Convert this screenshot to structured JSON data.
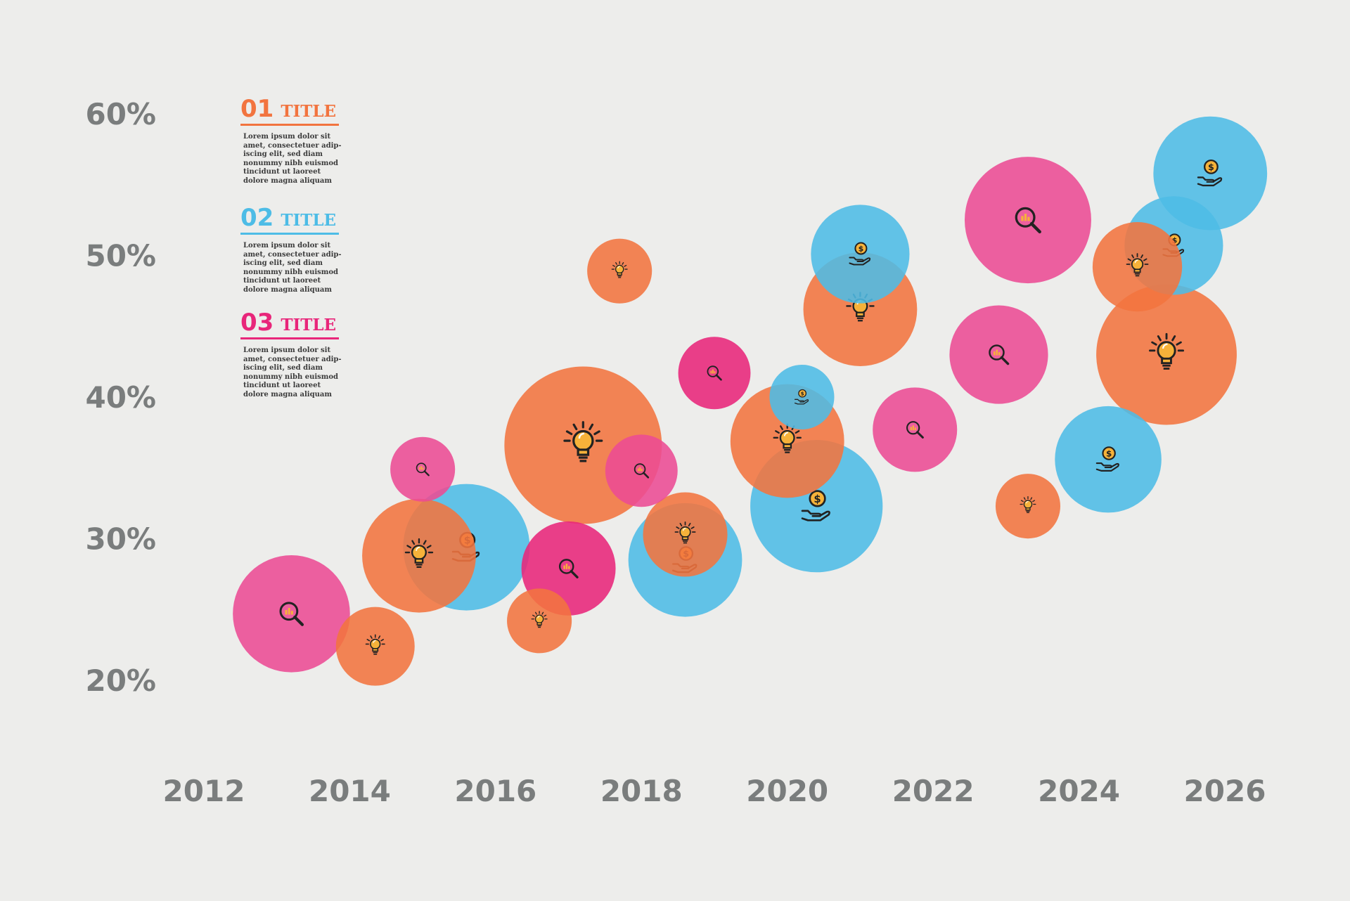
{
  "chart_data": {
    "type": "scatter",
    "subtype": "bubble",
    "title": "",
    "xlabel": "",
    "ylabel": "",
    "xlim": [
      2012,
      2026
    ],
    "ylim": [
      20,
      60
    ],
    "x_ticks": [
      "2012",
      "2014",
      "2016",
      "2018",
      "2020",
      "2022",
      "2024",
      "2026"
    ],
    "y_ticks": [
      "60%",
      "50%",
      "40%",
      "30%",
      "20%"
    ],
    "colors": {
      "orange": "#f2743f",
      "blue": "#4dbce6",
      "pink": "#ec4b94",
      "magenta": "#e8267a"
    },
    "series": [
      {
        "name": "01 TITLE",
        "color": "#f2743f",
        "icon": "lightbulb-icon",
        "points": [
          {
            "x": 2014.35,
            "y": 22.4,
            "size": 4
          },
          {
            "x": 2014.95,
            "y": 28.8,
            "size": 12
          },
          {
            "x": 2016.6,
            "y": 24.2,
            "size": 2
          },
          {
            "x": 2017.2,
            "y": 36.6,
            "size": 28
          },
          {
            "x": 2017.7,
            "y": 48.9,
            "size": 2
          },
          {
            "x": 2018.6,
            "y": 30.3,
            "size": 5
          },
          {
            "x": 2020.0,
            "y": 36.9,
            "size": 12
          },
          {
            "x": 2021.0,
            "y": 46.2,
            "size": 12
          },
          {
            "x": 2023.3,
            "y": 32.3,
            "size": 2
          },
          {
            "x": 2024.8,
            "y": 49.2,
            "size": 6
          },
          {
            "x": 2025.2,
            "y": 43.0,
            "size": 21
          }
        ]
      },
      {
        "name": "02 TITLE",
        "color": "#4dbce6",
        "icon": "coin-hand-icon",
        "points": [
          {
            "x": 2015.6,
            "y": 29.4,
            "size": 16
          },
          {
            "x": 2018.6,
            "y": 28.5,
            "size": 12
          },
          {
            "x": 2020.2,
            "y": 40.0,
            "size": 2
          },
          {
            "x": 2020.4,
            "y": 32.3,
            "size": 18
          },
          {
            "x": 2021.0,
            "y": 50.1,
            "size": 8
          },
          {
            "x": 2024.4,
            "y": 35.6,
            "size": 10
          },
          {
            "x": 2025.3,
            "y": 50.7,
            "size": 8
          },
          {
            "x": 2025.8,
            "y": 55.8,
            "size": 12
          }
        ]
      },
      {
        "name": "03 TITLE",
        "color": "#ec4b94",
        "icon": "magnifier-chart-icon",
        "points": [
          {
            "x": 2013.2,
            "y": 24.7,
            "size": 13
          },
          {
            "x": 2015.0,
            "y": 34.9,
            "size": 2
          },
          {
            "x": 2017.0,
            "y": 27.9,
            "size": 7
          },
          {
            "x": 2018.0,
            "y": 34.8,
            "size": 3
          },
          {
            "x": 2019.0,
            "y": 41.7,
            "size": 3
          },
          {
            "x": 2021.75,
            "y": 37.7,
            "size": 5
          },
          {
            "x": 2022.9,
            "y": 43.0,
            "size": 8
          },
          {
            "x": 2023.3,
            "y": 52.5,
            "size": 16
          }
        ]
      }
    ]
  },
  "legend": [
    {
      "num": "01",
      "title": "TITLE",
      "color": "#f2743f",
      "text": "Lorem ipsum dolor sit amet, consectetuer adip-iscing elit, sed diam nonummy nibh euismod tincidunt ut laoreet dolore magna aliquam"
    },
    {
      "num": "02",
      "title": "TITLE",
      "color": "#4dbce6",
      "text": "Lorem ipsum dolor sit amet, consectetuer adip-iscing elit, sed diam nonummy nibh euismod tincidunt ut laoreet dolore magna aliquam"
    },
    {
      "num": "03",
      "title": "TITLE",
      "color": "#e8267a",
      "text": "Lorem ipsum dolor sit amet, consectetuer adip-iscing elit, sed diam nonummy nibh euismod tincidunt ut laoreet dolore magna aliquam"
    }
  ]
}
